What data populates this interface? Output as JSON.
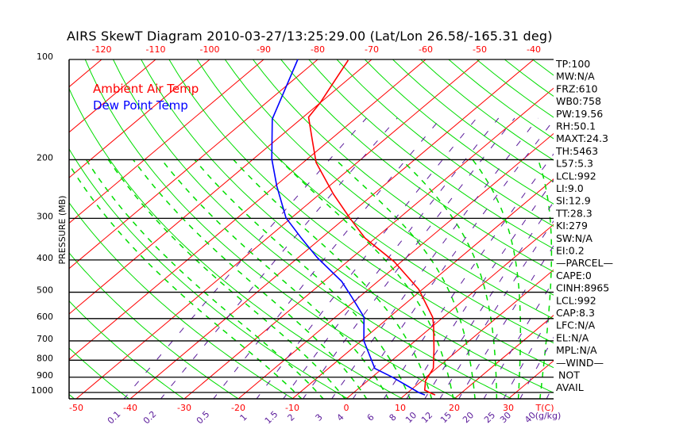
{
  "chart_data": {
    "type": "line",
    "subtype": "skew-t log-p diagram",
    "title": "AIRS SkewT Diagram 2010-03-27/13:25:29.00 (Lat/Lon 26.58/-165.31 deg)",
    "ylabel": "PRESSURE (MB)",
    "xlabel": "T(C)",
    "mixing_ratio_unit_label": "(g/kg)",
    "ylim": [
      1046,
      100
    ],
    "pressure_ticks": [
      100,
      200,
      300,
      400,
      500,
      600,
      700,
      800,
      900,
      1000
    ],
    "pressure_tick_labels": [
      "100",
      "200",
      "300",
      "400",
      "500",
      "600",
      "700",
      "800",
      "900",
      "1000"
    ],
    "top_temp_ticks": [
      -120,
      -110,
      -100,
      -90,
      -80,
      -70,
      -60,
      -50,
      -40
    ],
    "top_temp_labels": [
      "-120",
      "-110",
      "-100",
      "-90",
      "-80",
      "-70",
      "-60",
      "-50",
      "-40"
    ],
    "bottom_temp_ticks": [
      -50,
      -40,
      -30,
      -20,
      -10,
      0,
      10,
      20,
      30
    ],
    "bottom_temp_labels": [
      "-50",
      "-40",
      "-30",
      "-20",
      "-10",
      "0",
      "10",
      "20",
      "30"
    ],
    "mixing_ratio_labels": [
      "0.1",
      "0.2",
      "0.5",
      "1",
      "1.5",
      "2",
      "3",
      "4",
      "6",
      "8",
      "10",
      "12",
      "15",
      "20",
      "25",
      "30",
      "40"
    ],
    "legend": [
      "Ambient Air Temp",
      "Dew Point Temp"
    ],
    "legend_placement": "top-left",
    "colors": {
      "temp": "#ff0000",
      "dew": "#0000ff",
      "isotherm": "#ff0000",
      "adiabat": "#00dd00",
      "mixing": "#5a1a9a",
      "axis": "#000000"
    },
    "series": [
      {
        "name": "Ambient Air Temp",
        "pressure": [
          1017,
          1000,
          984,
          922,
          846,
          741,
          627,
          594,
          490,
          405,
          344,
          299,
          254,
          204,
          173,
          149,
          135,
          100.5
        ],
        "temperature": [
          15.6,
          14.0,
          12.6,
          10.7,
          9.4,
          5.3,
          -0.1,
          -2.0,
          -10.7,
          -21.3,
          -31.9,
          -39.2,
          -47.4,
          -57.6,
          -63.6,
          -69.0,
          -70.0,
          -74.2
        ]
      },
      {
        "name": "Dew Point Temp",
        "pressure": [
          1017,
          1000,
          900,
          847,
          700,
          594,
          518,
          464,
          394,
          344,
          299,
          240,
          199,
          151,
          121,
          100
        ],
        "temperature": [
          13.7,
          12.0,
          3.8,
          -1.4,
          -9.5,
          -14.7,
          -21.3,
          -26.7,
          -36.4,
          -43.7,
          -51.0,
          -59.7,
          -66.6,
          -75.3,
          -79.8,
          -83.7
        ]
      }
    ],
    "indices": [
      "TP:100",
      "MW:N/A",
      "FRZ:610",
      "WB0:758",
      "PW:19.56",
      "RH:50.1",
      "MAXT:24.3",
      "TH:5463",
      "L57:5.3",
      "LCL:992",
      "LI:9.0",
      "SI:12.9",
      "TT:28.3",
      "KI:279",
      "SW:N/A",
      "EI:0.2",
      "—PARCEL—",
      "CAPE:0",
      "CINH:8965",
      "LCL:992",
      "CAP:8.3",
      "LFC:N/A",
      "EL:N/A",
      "MPL:N/A",
      "—WIND—",
      "NOT",
      "AVAIL"
    ]
  }
}
